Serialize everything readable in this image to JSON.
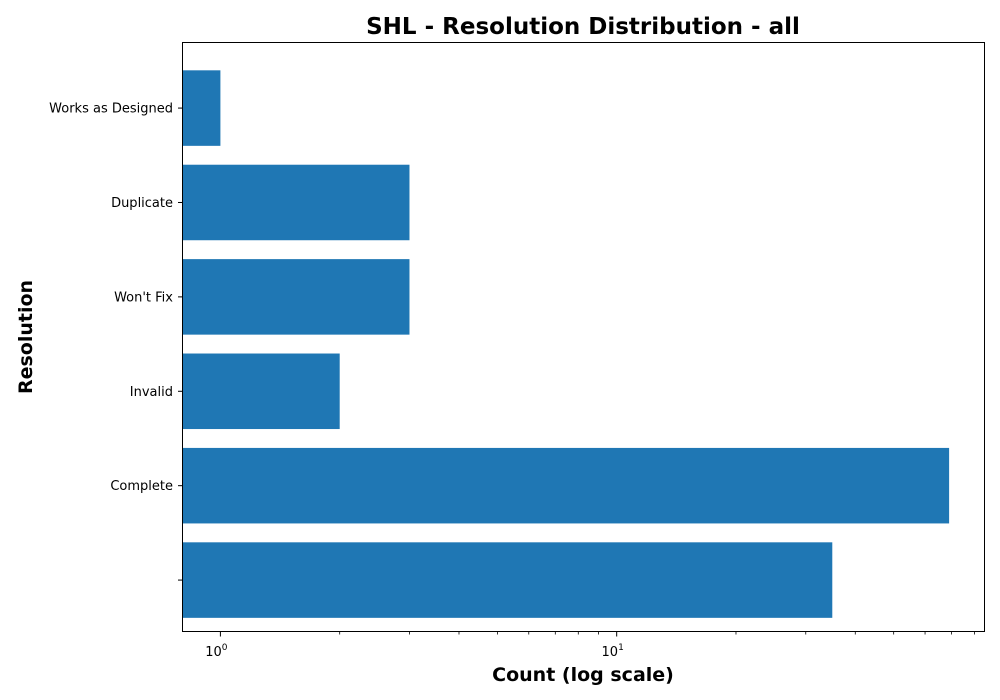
{
  "chart_data": {
    "type": "bar",
    "orientation": "horizontal",
    "title": "SHL - Resolution Distribution - all",
    "xlabel": "Count (log scale)",
    "ylabel": "Resolution",
    "x_scale": "log",
    "xlim": [
      0.8,
      85
    ],
    "x_ticks": [
      {
        "value": 1,
        "label": "10",
        "exp": "0"
      },
      {
        "value": 10,
        "label": "10",
        "exp": "1"
      }
    ],
    "categories": [
      "Works as Designed",
      "Duplicate",
      "Won't Fix",
      "Invalid",
      "Complete",
      ""
    ],
    "values": [
      1,
      3,
      3,
      2,
      69,
      35
    ],
    "bar_color": "#1f77b4",
    "grid": false,
    "legend": "none"
  }
}
